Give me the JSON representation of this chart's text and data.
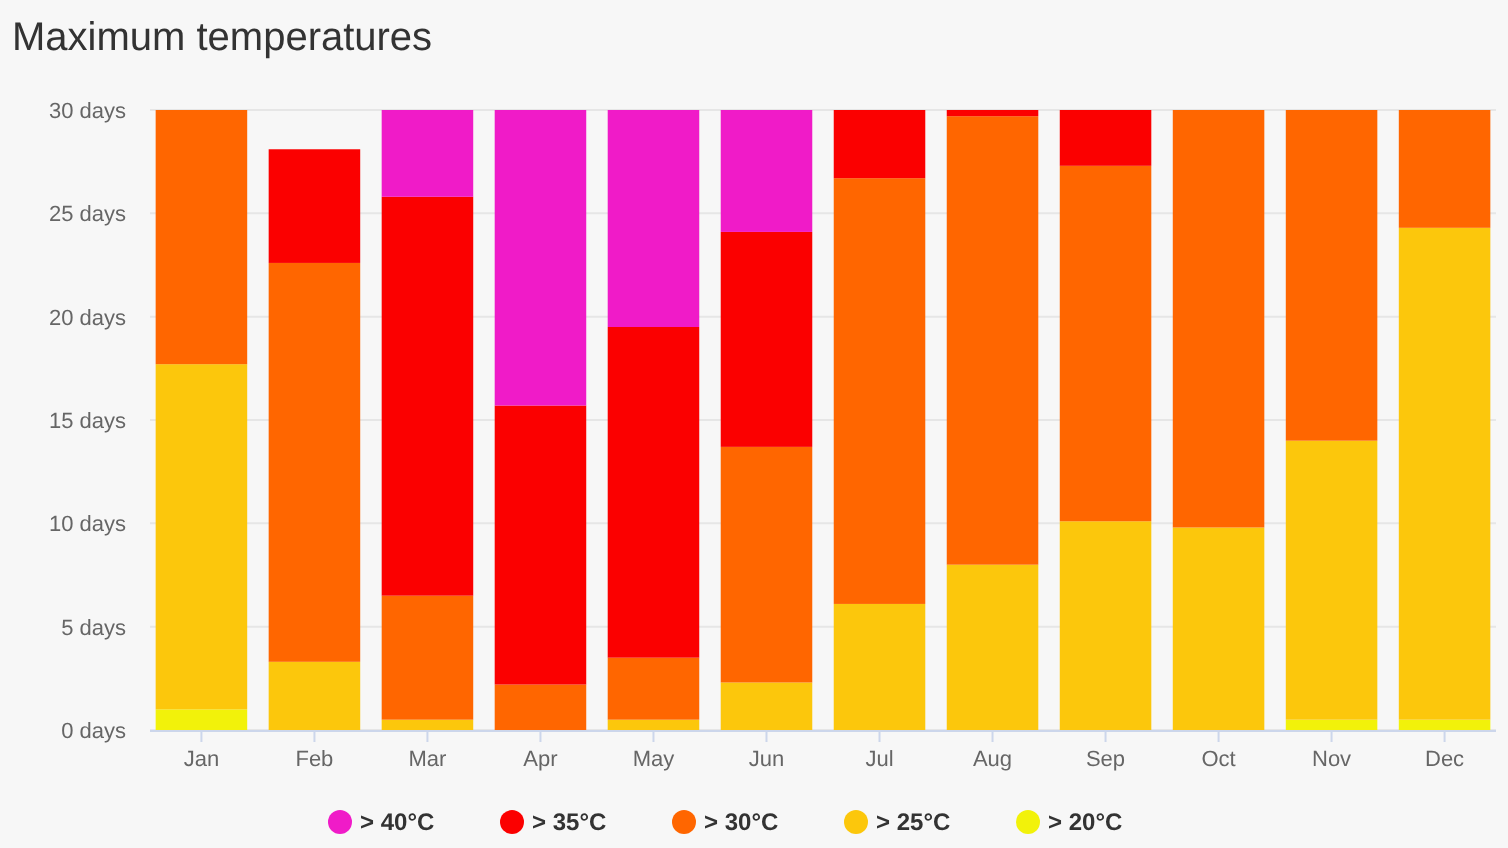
{
  "chart_data": {
    "type": "bar",
    "title": "Maximum temperatures",
    "stacked": true,
    "categories": [
      "Jan",
      "Feb",
      "Mar",
      "Apr",
      "May",
      "Jun",
      "Jul",
      "Aug",
      "Sep",
      "Oct",
      "Nov",
      "Dec"
    ],
    "series": [
      {
        "name": "> 20°C",
        "color": "#f2f20a",
        "values": [
          1,
          0,
          0,
          0,
          0,
          0,
          0,
          0,
          0,
          0,
          0.5,
          0.5
        ]
      },
      {
        "name": "> 25°C",
        "color": "#fcc70c",
        "values": [
          16.7,
          3.3,
          0.5,
          0,
          0.5,
          2.3,
          6.1,
          8,
          10.1,
          9.8,
          13.5,
          23.8
        ]
      },
      {
        "name": "> 30°C",
        "color": "#ff6600",
        "values": [
          12.3,
          19.3,
          6,
          2.2,
          3,
          11.4,
          20.6,
          21.7,
          17.2,
          20.2,
          16,
          5.7
        ]
      },
      {
        "name": "> 35°C",
        "color": "#fb0000",
        "values": [
          0,
          5.5,
          19.3,
          13.5,
          16,
          10.4,
          3.3,
          0.3,
          2.7,
          0,
          0,
          0
        ]
      },
      {
        "name": "> 40°C",
        "color": "#f01bc8",
        "values": [
          0,
          0,
          4.2,
          14.3,
          10.5,
          5.9,
          0,
          0,
          0,
          0,
          0,
          0
        ]
      }
    ],
    "ylim": [
      0,
      30
    ],
    "yticks": [
      {
        "value": 0,
        "label": "0 days"
      },
      {
        "value": 5,
        "label": "5 days"
      },
      {
        "value": 10,
        "label": "10 days"
      },
      {
        "value": 15,
        "label": "15 days"
      },
      {
        "value": 20,
        "label": "20 days"
      },
      {
        "value": 25,
        "label": "25 days"
      },
      {
        "value": 30,
        "label": "30 days"
      }
    ],
    "grid": "y",
    "legend": "bottom"
  }
}
